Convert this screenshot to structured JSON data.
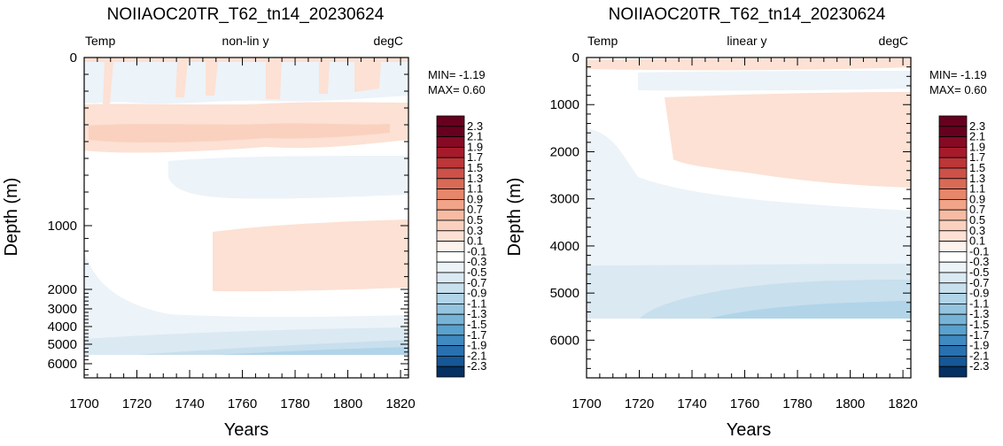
{
  "chart_data": [
    {
      "type": "heatmap",
      "title": "NOIIAOC20TR_T62_tn14_20230624",
      "left_label": "Temp",
      "center_label": "non-lin y",
      "right_label": "degC",
      "xlabel": "Years",
      "ylabel": "Depth (m)",
      "x_ticks": [
        "1700",
        "1720",
        "1740",
        "1760",
        "1780",
        "1800",
        "1820"
      ],
      "y_ticks": [
        "0",
        "1000",
        "2000",
        "3000",
        "4000",
        "5000",
        "6000"
      ],
      "xlim": [
        1700,
        1823
      ],
      "ylim": [
        0,
        6500
      ],
      "y_scale": "non-linear",
      "stats": {
        "min": "MIN= -1.19",
        "max": "MAX=  0.60"
      },
      "colorbar": {
        "labels": [
          "2.3",
          "2.1",
          "1.9",
          "1.7",
          "1.5",
          "1.3",
          "1.1",
          "0.9",
          "0.7",
          "0.5",
          "0.3",
          "0.1",
          "-0.1",
          "-0.3",
          "-0.5",
          "-0.7",
          "-0.9",
          "-1.1",
          "-1.3",
          "-1.5",
          "-1.7",
          "-1.9",
          "-2.1",
          "-2.3"
        ],
        "colors": [
          "#67001f",
          "#870a24",
          "#a51b2c",
          "#bd3638",
          "#cc5149",
          "#d96a56",
          "#e6866a",
          "#f1a488",
          "#f7bba3",
          "#fad1bf",
          "#fce1d4",
          "#fef2ec",
          "#ffffff",
          "#ecf3f9",
          "#dbe9f3",
          "#c8dfed",
          "#b1d4e8",
          "#94c4e0",
          "#76b3d7",
          "#5aa1cd",
          "#3f8ac0",
          "#2970b0",
          "#155797",
          "#053061"
        ]
      },
      "regions": [
        {
          "value": "-0.1 to 0.1",
          "x": [
            1700,
            1823
          ],
          "depth": [
            0,
            5500
          ]
        },
        {
          "value": "0.1 to 0.3",
          "x": [
            1700,
            1823
          ],
          "depth": [
            0,
            60
          ]
        },
        {
          "value": "-0.3 to -0.1",
          "x": [
            1700,
            1823
          ],
          "depth": [
            60,
            250
          ]
        },
        {
          "value": "0.1 to 0.3",
          "x": [
            1700,
            1823
          ],
          "depth": [
            250,
            470
          ]
        },
        {
          "value": "-0.3 to -0.1",
          "x": [
            1730,
            1823
          ],
          "depth": [
            580,
            840
          ]
        },
        {
          "value": "0.1 to 0.3",
          "x": [
            1750,
            1823
          ],
          "depth": [
            1000,
            2700
          ]
        },
        {
          "value": "-0.3 to -0.1",
          "x": [
            1700,
            1823
          ],
          "depth": [
            3200,
            5500
          ]
        },
        {
          "value": "-0.5 to -0.3",
          "x": [
            1700,
            1823
          ],
          "depth": [
            4400,
            5500
          ]
        },
        {
          "value": "-0.7 to -0.5",
          "x": [
            1720,
            1823
          ],
          "depth": [
            4900,
            5500
          ]
        }
      ]
    },
    {
      "type": "heatmap",
      "title": "NOIIAOC20TR_T62_tn14_20230624",
      "left_label": "Temp",
      "center_label": "linear y",
      "right_label": "degC",
      "xlabel": "Years",
      "ylabel": "Depth (m)",
      "x_ticks": [
        "1700",
        "1720",
        "1740",
        "1760",
        "1780",
        "1800",
        "1820"
      ],
      "y_ticks": [
        "0",
        "1000",
        "2000",
        "3000",
        "4000",
        "5000",
        "6000"
      ],
      "xlim": [
        1700,
        1823
      ],
      "ylim": [
        0,
        6800
      ],
      "y_scale": "linear",
      "stats": {
        "min": "MIN= -1.19",
        "max": "MAX=  0.60"
      },
      "colorbar": {
        "labels": [
          "2.3",
          "2.1",
          "1.9",
          "1.7",
          "1.5",
          "1.3",
          "1.1",
          "0.9",
          "0.7",
          "0.5",
          "0.3",
          "0.1",
          "-0.1",
          "-0.3",
          "-0.5",
          "-0.7",
          "-0.9",
          "-1.1",
          "-1.3",
          "-1.5",
          "-1.7",
          "-1.9",
          "-2.1",
          "-2.3"
        ],
        "colors": [
          "#67001f",
          "#870a24",
          "#a51b2c",
          "#bd3638",
          "#cc5149",
          "#d96a56",
          "#e6866a",
          "#f1a488",
          "#f7bba3",
          "#fad1bf",
          "#fce1d4",
          "#fef2ec",
          "#ffffff",
          "#ecf3f9",
          "#dbe9f3",
          "#c8dfed",
          "#b1d4e8",
          "#94c4e0",
          "#76b3d7",
          "#5aa1cd",
          "#3f8ac0",
          "#2970b0",
          "#155797",
          "#053061"
        ]
      },
      "regions": [
        {
          "value": "-0.1 to 0.1",
          "x": [
            1700,
            1823
          ],
          "depth": [
            0,
            5500
          ]
        },
        {
          "value": "0.1 to 0.3",
          "x": [
            1700,
            1823
          ],
          "depth": [
            0,
            200
          ]
        },
        {
          "value": "-0.3 to -0.1",
          "x": [
            1700,
            1823
          ],
          "depth": [
            300,
            650
          ]
        },
        {
          "value": "0.1 to 0.3",
          "x": [
            1760,
            1823
          ],
          "depth": [
            800,
            2750
          ]
        },
        {
          "value": "-0.3 to -0.1",
          "x": [
            1700,
            1823
          ],
          "depth": [
            1500,
            5500
          ]
        },
        {
          "value": "-0.5 to -0.3",
          "x": [
            1700,
            1823
          ],
          "depth": [
            4300,
            5500
          ]
        },
        {
          "value": "-0.7 to -0.5",
          "x": [
            1720,
            1823
          ],
          "depth": [
            4650,
            5500
          ]
        }
      ]
    }
  ]
}
